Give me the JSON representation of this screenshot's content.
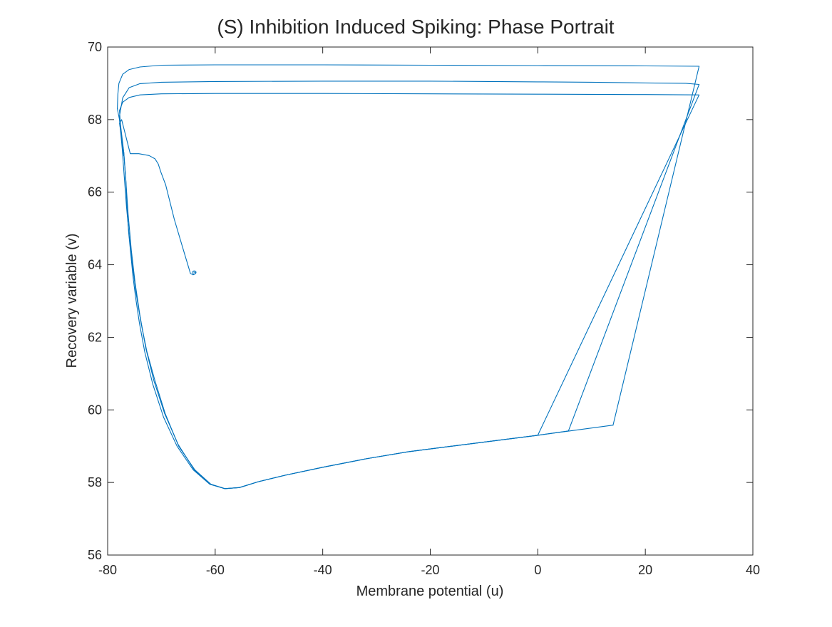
{
  "chart_data": {
    "type": "line",
    "title": "(S)  Inhibition Induced Spiking: Phase Portrait",
    "xlabel": "Membrane potential (u)",
    "ylabel": "Recovery variable (v)",
    "xlim": [
      -80,
      40
    ],
    "ylim": [
      56,
      70
    ],
    "xticks": [
      -80,
      -60,
      -40,
      -20,
      0,
      20,
      40
    ],
    "yticks": [
      56,
      58,
      60,
      62,
      64,
      66,
      68,
      70
    ],
    "grid": false,
    "legend": "none",
    "line_color": "#0072BD",
    "series": [
      {
        "x": [
          -64,
          -63.6,
          -63.7,
          -64.1,
          -64.6,
          -66.0,
          -67.6,
          -69.2,
          -70.1,
          -70.6,
          -71.2,
          -72.3,
          -74.2,
          -75.8,
          -77.4,
          -77.8,
          -77.0,
          -76.6,
          -76.4,
          -76.1,
          -75.7,
          -75.3,
          -74.8,
          -74.1,
          -73.1,
          -71.6,
          -69.6,
          -67.1,
          -64.1,
          -61.0,
          -58.2,
          -55.5,
          -52.0,
          -47.0,
          -40.0,
          -32.0,
          -24.0,
          -16.0,
          -8.0,
          0.0,
          5.7
        ],
        "y": [
          63.8,
          63.79,
          63.75,
          63.72,
          63.76,
          64.45,
          65.25,
          66.2,
          66.55,
          66.78,
          66.92,
          67.01,
          67.06,
          67.06,
          68.0,
          67.9,
          67.1,
          66.3,
          65.6,
          64.9,
          64.3,
          63.7,
          63.1,
          62.4,
          61.6,
          60.7,
          59.8,
          59.0,
          58.35,
          57.95,
          57.83,
          57.86,
          58.02,
          58.2,
          58.42,
          58.65,
          58.85,
          59.0,
          59.15,
          59.3,
          59.42
        ]
      },
      {
        "x": [
          5.7,
          30.0,
          27.5,
          20.0,
          10.0,
          0.0,
          -20.0,
          -40.0,
          -60.0,
          -70.0,
          -74.0,
          -76.0,
          -77.2,
          -77.8
        ],
        "y": [
          59.42,
          68.97,
          69.0,
          69.01,
          69.03,
          69.04,
          69.06,
          69.06,
          69.05,
          69.03,
          68.99,
          68.88,
          68.6,
          68.1
        ]
      },
      {
        "x": [
          -77.8,
          -77.0,
          -76.6,
          -76.2,
          -75.6,
          -74.9,
          -74.0,
          -72.9,
          -71.4,
          -69.4,
          -66.9,
          -63.9,
          -60.8,
          -58.2,
          -55.5,
          -52.0,
          -47.0,
          -40.0,
          -32.0,
          -24.0,
          -16.0,
          -8.0,
          0.0,
          14.0
        ],
        "y": [
          68.1,
          67.1,
          66.3,
          65.4,
          64.4,
          63.5,
          62.6,
          61.7,
          60.8,
          59.9,
          59.05,
          58.35,
          57.95,
          57.83,
          57.86,
          58.02,
          58.2,
          58.42,
          58.65,
          58.85,
          59.0,
          59.15,
          59.3,
          59.58
        ]
      },
      {
        "x": [
          14.0,
          30.0,
          20.0,
          0.0,
          -20.0,
          -40.0,
          -60.0,
          -70.0,
          -74.0,
          -76.0,
          -77.2,
          -77.9,
          -78.1,
          -78.2
        ],
        "y": [
          59.58,
          69.47,
          69.48,
          69.49,
          69.5,
          69.51,
          69.51,
          69.5,
          69.45,
          69.38,
          69.25,
          69.0,
          68.7,
          68.3
        ]
      },
      {
        "x": [
          -78.2,
          -77.8,
          -77.3,
          -76.9,
          -76.5,
          -76.0,
          -75.4,
          -74.7,
          -73.8,
          -72.7,
          -71.2,
          -69.3,
          -66.8,
          -63.8,
          -60.8,
          -58.2,
          -55.5,
          -52.0,
          -47.0,
          -40.0,
          -32.0,
          -24.0,
          -16.0,
          -8.0,
          0.0
        ],
        "y": [
          68.3,
          68.0,
          67.2,
          66.4,
          65.6,
          64.8,
          64.0,
          63.2,
          62.4,
          61.6,
          60.8,
          59.9,
          59.0,
          58.35,
          57.95,
          57.83,
          57.86,
          58.02,
          58.2,
          58.42,
          58.65,
          58.85,
          59.0,
          59.15,
          59.3
        ]
      },
      {
        "x": [
          0.0,
          30.0,
          20.0,
          0.0,
          -20.0,
          -40.0,
          -60.0,
          -70.0,
          -74.0,
          -76.0,
          -77.2,
          -77.8,
          -77.6,
          -77.3,
          -77.0
        ],
        "y": [
          59.3,
          68.68,
          68.69,
          68.7,
          68.71,
          68.72,
          68.72,
          68.71,
          68.68,
          68.61,
          68.48,
          68.25,
          67.8,
          67.4,
          67.0
        ]
      }
    ]
  }
}
